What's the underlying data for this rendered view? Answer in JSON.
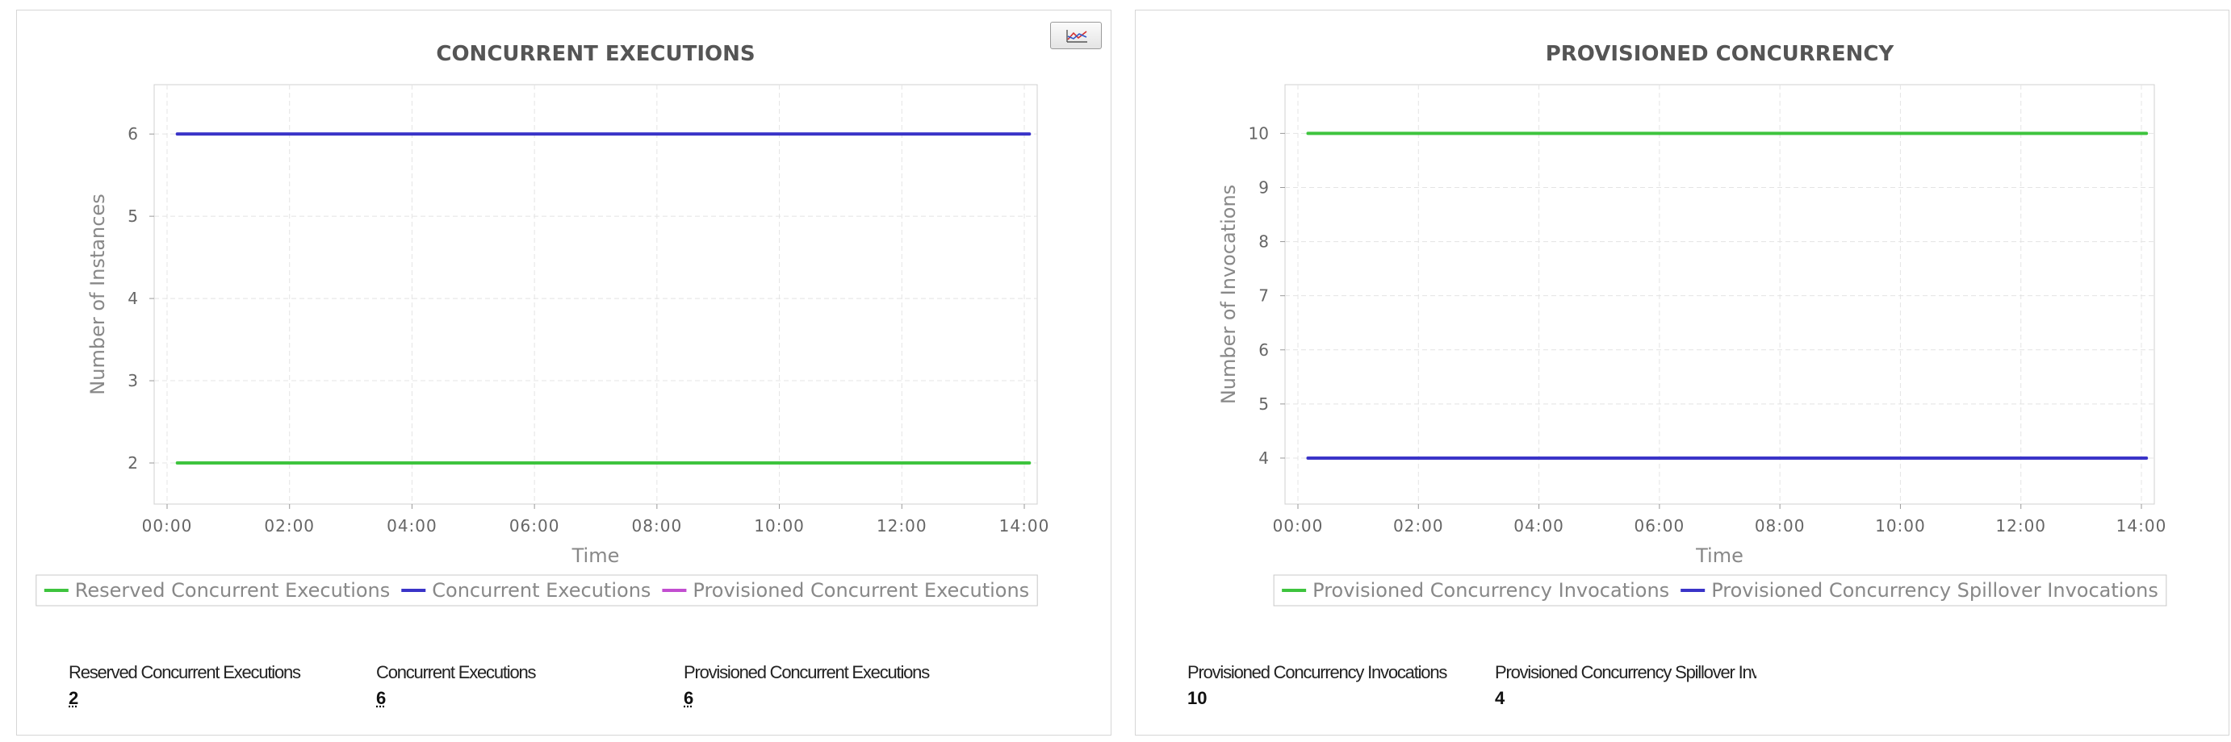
{
  "panels": [
    {
      "id": "concurrent",
      "title": "CONCURRENT EXECUTIONS",
      "summary": [
        {
          "label": "Reserved Concurrent Executions",
          "value": "2"
        },
        {
          "label": "Concurrent Executions",
          "value": "6"
        },
        {
          "label": "Provisioned Concurrent Executions",
          "value": "6"
        }
      ]
    },
    {
      "id": "provisioned",
      "title": "PROVISIONED CONCURRENCY",
      "summary": [
        {
          "label": "Provisioned Concurrency Invocations",
          "value": "10"
        },
        {
          "label": "Provisioned Concurrency Spillover Invocations",
          "value": "4"
        }
      ]
    }
  ],
  "toolbar": {
    "chart_type_toggle": "line-chart-icon"
  },
  "chart_data": [
    {
      "type": "line",
      "title": "CONCURRENT EXECUTIONS",
      "xlabel": "Time",
      "ylabel": "Number of Instances",
      "x_ticks": [
        "00:00",
        "02:00",
        "04:00",
        "06:00",
        "08:00",
        "10:00",
        "12:00",
        "14:00"
      ],
      "x_range": [
        "00:10",
        "14:05"
      ],
      "y_ticks": [
        2,
        3,
        4,
        5,
        6
      ],
      "ylim": [
        1.5,
        6.6
      ],
      "grid": true,
      "legend_position": "bottom",
      "series": [
        {
          "name": "Reserved Concurrent Executions",
          "color": "#3ec43e",
          "x": [
            "00:10",
            "14:05"
          ],
          "values": [
            2,
            2
          ]
        },
        {
          "name": "Concurrent Executions",
          "color": "#3a34c8",
          "x": [
            "00:10",
            "14:05"
          ],
          "values": [
            6,
            6
          ]
        },
        {
          "name": "Provisioned Concurrent Executions",
          "color": "#c24ed0",
          "x": [],
          "values": []
        }
      ]
    },
    {
      "type": "line",
      "title": "PROVISIONED CONCURRENCY",
      "xlabel": "Time",
      "ylabel": "Number of Invocations",
      "x_ticks": [
        "00:00",
        "02:00",
        "04:00",
        "06:00",
        "08:00",
        "10:00",
        "12:00",
        "14:00"
      ],
      "x_range": [
        "00:10",
        "14:05"
      ],
      "y_ticks": [
        4,
        5,
        6,
        7,
        8,
        9,
        10
      ],
      "ylim": [
        3.15,
        10.9
      ],
      "grid": true,
      "legend_position": "bottom",
      "series": [
        {
          "name": "Provisioned Concurrency Invocations",
          "color": "#3ec43e",
          "x": [
            "00:10",
            "14:05"
          ],
          "values": [
            10,
            10
          ]
        },
        {
          "name": "Provisioned Concurrency Spillover Invocations",
          "color": "#3a34c8",
          "x": [
            "00:10",
            "14:05"
          ],
          "values": [
            4,
            4
          ]
        }
      ]
    }
  ]
}
